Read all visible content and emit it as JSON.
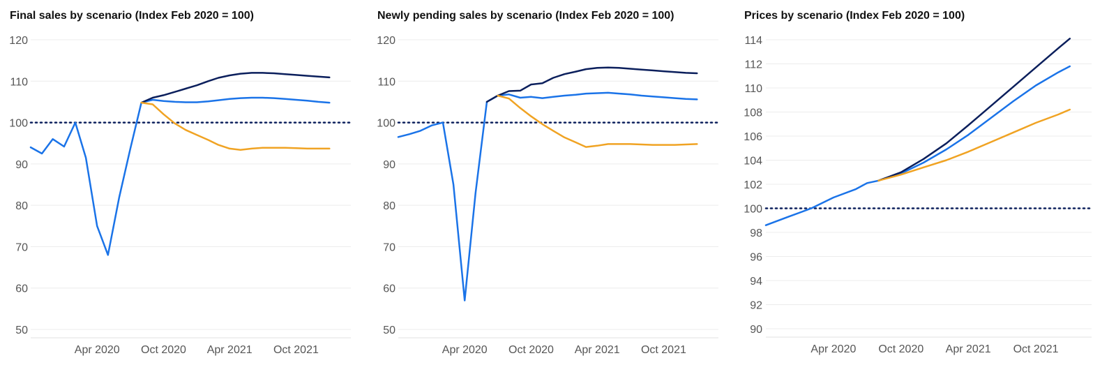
{
  "chart_data": [
    {
      "type": "line",
      "title": "Final sales by scenario (Index Feb 2020 = 100)",
      "ylim": [
        48,
        122
      ],
      "yticks": [
        50,
        60,
        70,
        80,
        90,
        100,
        110,
        120
      ],
      "x_range": [
        "2019-10-01",
        "2022-03-01"
      ],
      "xticks": [
        {
          "label": "Apr 2020",
          "date": "2020-04-01"
        },
        {
          "label": "Oct 2020",
          "date": "2020-10-01"
        },
        {
          "label": "Apr 2021",
          "date": "2021-04-01"
        },
        {
          "label": "Oct 2021",
          "date": "2021-10-01"
        }
      ],
      "reference_line": 100,
      "grid": true,
      "series": [
        {
          "color": "#1a73e8",
          "points": [
            [
              "2019-10-01",
              94
            ],
            [
              "2019-11-01",
              92.5
            ],
            [
              "2019-12-01",
              96
            ],
            [
              "2020-01-01",
              94.2
            ],
            [
              "2020-02-01",
              100
            ],
            [
              "2020-03-01",
              91.5
            ],
            [
              "2020-04-01",
              75
            ],
            [
              "2020-05-01",
              68
            ],
            [
              "2020-06-01",
              82
            ],
            [
              "2020-07-01",
              93.5
            ],
            [
              "2020-08-01",
              104.8
            ],
            [
              "2020-09-01",
              105.5
            ],
            [
              "2020-10-01",
              105.2
            ],
            [
              "2020-11-01",
              105
            ],
            [
              "2020-12-01",
              104.9
            ],
            [
              "2021-01-01",
              104.9
            ],
            [
              "2021-02-01",
              105.1
            ],
            [
              "2021-03-01",
              105.4
            ],
            [
              "2021-04-01",
              105.7
            ],
            [
              "2021-05-01",
              105.9
            ],
            [
              "2021-06-01",
              106
            ],
            [
              "2021-07-01",
              106
            ],
            [
              "2021-08-01",
              105.9
            ],
            [
              "2021-09-01",
              105.7
            ],
            [
              "2021-10-01",
              105.5
            ],
            [
              "2021-11-01",
              105.3
            ],
            [
              "2021-12-01",
              105
            ],
            [
              "2022-01-01",
              104.8
            ]
          ]
        },
        {
          "color": "#0b1f5c",
          "points": [
            [
              "2020-08-01",
              104.8
            ],
            [
              "2020-09-01",
              106
            ],
            [
              "2020-10-01",
              106.6
            ],
            [
              "2020-11-01",
              107.4
            ],
            [
              "2020-12-01",
              108.2
            ],
            [
              "2021-01-01",
              109
            ],
            [
              "2021-02-01",
              110
            ],
            [
              "2021-03-01",
              110.8
            ],
            [
              "2021-04-01",
              111.4
            ],
            [
              "2021-05-01",
              111.8
            ],
            [
              "2021-06-01",
              112
            ],
            [
              "2021-07-01",
              112
            ],
            [
              "2021-08-01",
              111.9
            ],
            [
              "2021-09-01",
              111.7
            ],
            [
              "2021-10-01",
              111.5
            ],
            [
              "2021-11-01",
              111.3
            ],
            [
              "2021-12-01",
              111.1
            ],
            [
              "2022-01-01",
              110.9
            ]
          ]
        },
        {
          "color": "#f0a323",
          "points": [
            [
              "2020-08-01",
              104.8
            ],
            [
              "2020-09-01",
              104.4
            ],
            [
              "2020-10-01",
              102
            ],
            [
              "2020-11-01",
              99.8
            ],
            [
              "2020-12-01",
              98.2
            ],
            [
              "2021-01-01",
              97
            ],
            [
              "2021-02-01",
              95.8
            ],
            [
              "2021-03-01",
              94.6
            ],
            [
              "2021-04-01",
              93.7
            ],
            [
              "2021-05-01",
              93.4
            ],
            [
              "2021-06-01",
              93.7
            ],
            [
              "2021-07-01",
              93.9
            ],
            [
              "2021-08-01",
              93.9
            ],
            [
              "2021-09-01",
              93.9
            ],
            [
              "2021-10-01",
              93.8
            ],
            [
              "2021-11-01",
              93.7
            ],
            [
              "2021-12-01",
              93.7
            ],
            [
              "2022-01-01",
              93.7
            ]
          ]
        }
      ]
    },
    {
      "type": "line",
      "title": "Newly pending sales by scenario (Index Feb 2020 = 100)",
      "ylim": [
        48,
        122
      ],
      "yticks": [
        50,
        60,
        70,
        80,
        90,
        100,
        110,
        120
      ],
      "x_range": [
        "2019-10-01",
        "2022-03-01"
      ],
      "xticks": [
        {
          "label": "Apr 2020",
          "date": "2020-04-01"
        },
        {
          "label": "Oct 2020",
          "date": "2020-10-01"
        },
        {
          "label": "Apr 2021",
          "date": "2021-04-01"
        },
        {
          "label": "Oct 2021",
          "date": "2021-10-01"
        }
      ],
      "reference_line": 100,
      "grid": true,
      "series": [
        {
          "color": "#1a73e8",
          "points": [
            [
              "2019-10-01",
              96.5
            ],
            [
              "2019-11-01",
              97.2
            ],
            [
              "2019-12-01",
              98
            ],
            [
              "2020-01-01",
              99.3
            ],
            [
              "2020-02-01",
              100
            ],
            [
              "2020-03-01",
              85
            ],
            [
              "2020-04-01",
              57
            ],
            [
              "2020-05-01",
              83
            ],
            [
              "2020-06-01",
              105
            ],
            [
              "2020-07-01",
              106.5
            ],
            [
              "2020-08-01",
              106.8
            ],
            [
              "2020-09-01",
              106
            ],
            [
              "2020-10-01",
              106.2
            ],
            [
              "2020-11-01",
              105.9
            ],
            [
              "2020-12-01",
              106.2
            ],
            [
              "2021-01-01",
              106.5
            ],
            [
              "2021-02-01",
              106.7
            ],
            [
              "2021-03-01",
              107
            ],
            [
              "2021-04-01",
              107.1
            ],
            [
              "2021-05-01",
              107.2
            ],
            [
              "2021-06-01",
              107
            ],
            [
              "2021-07-01",
              106.8
            ],
            [
              "2021-08-01",
              106.5
            ],
            [
              "2021-09-01",
              106.3
            ],
            [
              "2021-10-01",
              106.1
            ],
            [
              "2021-11-01",
              105.9
            ],
            [
              "2021-12-01",
              105.7
            ],
            [
              "2022-01-01",
              105.6
            ]
          ]
        },
        {
          "color": "#0b1f5c",
          "points": [
            [
              "2020-06-01",
              105
            ],
            [
              "2020-07-01",
              106.5
            ],
            [
              "2020-08-01",
              107.6
            ],
            [
              "2020-09-01",
              107.7
            ],
            [
              "2020-10-01",
              109.2
            ],
            [
              "2020-11-01",
              109.5
            ],
            [
              "2020-12-01",
              110.8
            ],
            [
              "2021-01-01",
              111.7
            ],
            [
              "2021-02-01",
              112.3
            ],
            [
              "2021-03-01",
              112.9
            ],
            [
              "2021-04-01",
              113.2
            ],
            [
              "2021-05-01",
              113.3
            ],
            [
              "2021-06-01",
              113.2
            ],
            [
              "2021-07-01",
              113
            ],
            [
              "2021-08-01",
              112.8
            ],
            [
              "2021-09-01",
              112.6
            ],
            [
              "2021-10-01",
              112.4
            ],
            [
              "2021-11-01",
              112.2
            ],
            [
              "2021-12-01",
              112
            ],
            [
              "2022-01-01",
              111.9
            ]
          ]
        },
        {
          "color": "#f0a323",
          "points": [
            [
              "2020-07-01",
              106.5
            ],
            [
              "2020-08-01",
              105.8
            ],
            [
              "2020-09-01",
              103.5
            ],
            [
              "2020-10-01",
              101.5
            ],
            [
              "2020-11-01",
              99.6
            ],
            [
              "2020-12-01",
              98
            ],
            [
              "2021-01-01",
              96.4
            ],
            [
              "2021-02-01",
              95.2
            ],
            [
              "2021-03-01",
              94.1
            ],
            [
              "2021-04-01",
              94.4
            ],
            [
              "2021-05-01",
              94.8
            ],
            [
              "2021-06-01",
              94.8
            ],
            [
              "2021-07-01",
              94.8
            ],
            [
              "2021-08-01",
              94.7
            ],
            [
              "2021-09-01",
              94.6
            ],
            [
              "2021-10-01",
              94.6
            ],
            [
              "2021-11-01",
              94.6
            ],
            [
              "2021-12-01",
              94.7
            ],
            [
              "2022-01-01",
              94.8
            ]
          ]
        }
      ]
    },
    {
      "type": "line",
      "title": "Prices by scenario (Index Feb 2020 = 100)",
      "ylim": [
        89.5,
        114.5
      ],
      "yticks": [
        90,
        92,
        94,
        96,
        98,
        100,
        102,
        104,
        106,
        108,
        110,
        112,
        114
      ],
      "x_range": [
        "2019-10-01",
        "2022-03-01"
      ],
      "xticks": [
        {
          "label": "Apr 2020",
          "date": "2020-04-01"
        },
        {
          "label": "Oct 2020",
          "date": "2020-10-01"
        },
        {
          "label": "Apr 2021",
          "date": "2021-04-01"
        },
        {
          "label": "Oct 2021",
          "date": "2021-10-01"
        }
      ],
      "reference_line": 100,
      "grid": true,
      "series": [
        {
          "color": "#1a73e8",
          "points": [
            [
              "2019-10-01",
              98.6
            ],
            [
              "2019-12-01",
              99.3
            ],
            [
              "2020-02-01",
              100
            ],
            [
              "2020-04-01",
              100.9
            ],
            [
              "2020-06-01",
              101.6
            ],
            [
              "2020-07-01",
              102.1
            ],
            [
              "2020-08-01",
              102.3
            ],
            [
              "2020-10-01",
              102.9
            ],
            [
              "2020-12-01",
              103.8
            ],
            [
              "2021-02-01",
              104.9
            ],
            [
              "2021-04-01",
              106.1
            ],
            [
              "2021-06-01",
              107.5
            ],
            [
              "2021-08-01",
              108.9
            ],
            [
              "2021-10-01",
              110.2
            ],
            [
              "2021-12-01",
              111.3
            ],
            [
              "2022-01-01",
              111.8
            ]
          ]
        },
        {
          "color": "#0b1f5c",
          "points": [
            [
              "2020-08-01",
              102.3
            ],
            [
              "2020-10-01",
              103
            ],
            [
              "2020-12-01",
              104.1
            ],
            [
              "2021-02-01",
              105.4
            ],
            [
              "2021-04-01",
              106.9
            ],
            [
              "2021-06-01",
              108.5
            ],
            [
              "2021-08-01",
              110.1
            ],
            [
              "2021-10-01",
              111.7
            ],
            [
              "2021-12-01",
              113.3
            ],
            [
              "2022-01-01",
              114.1
            ]
          ]
        },
        {
          "color": "#f0a323",
          "points": [
            [
              "2020-08-01",
              102.3
            ],
            [
              "2020-10-01",
              102.8
            ],
            [
              "2020-12-01",
              103.4
            ],
            [
              "2021-02-01",
              104
            ],
            [
              "2021-04-01",
              104.7
            ],
            [
              "2021-06-01",
              105.5
            ],
            [
              "2021-08-01",
              106.3
            ],
            [
              "2021-10-01",
              107.1
            ],
            [
              "2021-12-01",
              107.8
            ],
            [
              "2022-01-01",
              108.2
            ]
          ]
        }
      ]
    }
  ]
}
